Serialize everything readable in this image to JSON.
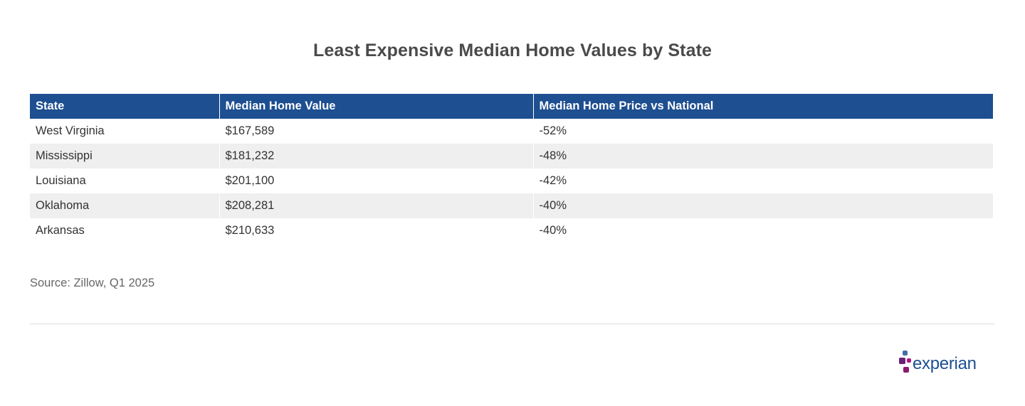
{
  "chart_data": {
    "type": "table",
    "title": "Least Expensive Median Home Values by State",
    "columns": [
      "State",
      "Median Home Value",
      "Median Home Price vs National"
    ],
    "rows": [
      [
        "West Virginia",
        "$167,589",
        "-52%"
      ],
      [
        "Mississippi",
        "$181,232",
        "-48%"
      ],
      [
        "Louisiana",
        "$201,100",
        "-42%"
      ],
      [
        "Oklahoma",
        "$208,281",
        "-40%"
      ],
      [
        "Arkansas",
        "$210,633",
        "-40%"
      ]
    ],
    "source": "Source: Zillow, Q1 2025"
  },
  "logo": {
    "text": "experian",
    "colors": {
      "blue": "#1d4f91",
      "purple": "#6d2077",
      "magenta": "#af1685",
      "violet": "#426da9"
    }
  },
  "colors": {
    "header_bg": "#1d4f91",
    "stripe_bg": "#efefef"
  }
}
